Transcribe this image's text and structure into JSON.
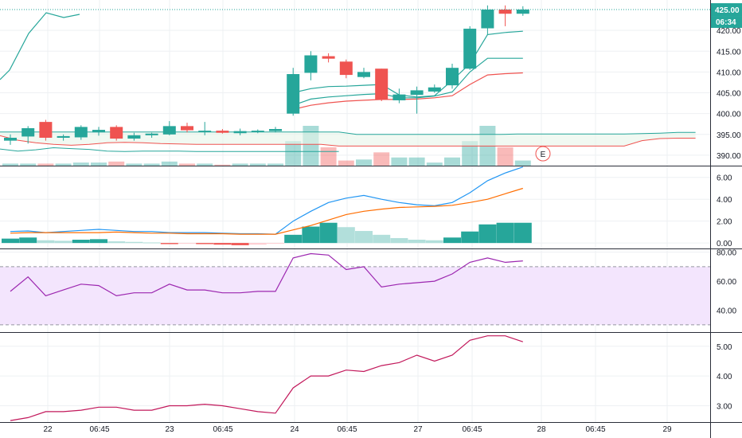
{
  "colors": {
    "up": "#26a69a",
    "down": "#ef5350",
    "price_line": "#26a69a",
    "ma_fast": "#26a69a",
    "ma_slow": "#ef5350",
    "cloud_line": "#26a69a",
    "macd_line": "#2196f3",
    "signal_line": "#ff6d00",
    "rsi_line": "#9c27b0",
    "rsi_band": "#f3e5fd",
    "atr_line": "#c2185b",
    "grid": "#eef0f3",
    "separator": "#2a2e39",
    "earnings": "#ef5350"
  },
  "chart_data": [
    {
      "type": "candlestick",
      "pane": "price",
      "y_ticks": [
        "390.00",
        "395.00",
        "400.00",
        "405.00",
        "410.00",
        "415.00",
        "420.00"
      ],
      "ylim": [
        387.5,
        427.3
      ],
      "last_price_badge": "425.00",
      "countdown_badge": "06:34",
      "earnings_marker": "E",
      "candles": [
        {
          "o": 393.5,
          "h": 395.0,
          "l": 392.5,
          "c": 394.2
        },
        {
          "o": 394.5,
          "h": 397.0,
          "l": 392.8,
          "c": 396.5
        },
        {
          "o": 398.0,
          "h": 398.5,
          "l": 393.5,
          "c": 394.2
        },
        {
          "o": 394.2,
          "h": 395.0,
          "l": 393.5,
          "c": 394.6
        },
        {
          "o": 394.3,
          "h": 397.2,
          "l": 393.7,
          "c": 396.8
        },
        {
          "o": 395.5,
          "h": 396.8,
          "l": 394.7,
          "c": 396.1
        },
        {
          "o": 396.8,
          "h": 397.2,
          "l": 393.5,
          "c": 394.0
        },
        {
          "o": 394.0,
          "h": 395.4,
          "l": 393.5,
          "c": 394.8
        },
        {
          "o": 394.8,
          "h": 395.4,
          "l": 394.2,
          "c": 395.2
        },
        {
          "o": 395.0,
          "h": 398.2,
          "l": 394.8,
          "c": 397.0
        },
        {
          "o": 397.0,
          "h": 397.8,
          "l": 395.5,
          "c": 396.0
        },
        {
          "o": 395.6,
          "h": 398.0,
          "l": 394.8,
          "c": 395.9
        },
        {
          "o": 395.9,
          "h": 396.3,
          "l": 395.2,
          "c": 395.4
        },
        {
          "o": 395.3,
          "h": 396.4,
          "l": 394.8,
          "c": 395.8
        },
        {
          "o": 395.6,
          "h": 396.2,
          "l": 395.3,
          "c": 395.9
        },
        {
          "o": 395.8,
          "h": 396.8,
          "l": 395.5,
          "c": 396.3
        },
        {
          "o": 400.0,
          "h": 411.0,
          "l": 399.5,
          "c": 409.5
        },
        {
          "o": 409.8,
          "h": 415.0,
          "l": 408.0,
          "c": 414.0
        },
        {
          "o": 413.8,
          "h": 414.5,
          "l": 412.3,
          "c": 413.2
        },
        {
          "o": 412.5,
          "h": 413.0,
          "l": 408.5,
          "c": 409.3
        },
        {
          "o": 408.8,
          "h": 411.0,
          "l": 408.5,
          "c": 410.0
        },
        {
          "o": 410.8,
          "h": 410.8,
          "l": 403.0,
          "c": 403.4
        },
        {
          "o": 403.2,
          "h": 406.0,
          "l": 402.5,
          "c": 404.6
        },
        {
          "o": 404.5,
          "h": 406.5,
          "l": 400.0,
          "c": 405.6
        },
        {
          "o": 405.3,
          "h": 407.0,
          "l": 405.0,
          "c": 406.3
        },
        {
          "o": 406.8,
          "h": 412.0,
          "l": 406.0,
          "c": 411.0
        },
        {
          "o": 410.8,
          "h": 421.0,
          "l": 410.5,
          "c": 420.4
        },
        {
          "o": 420.5,
          "h": 426.0,
          "l": 419.0,
          "c": 425.0
        },
        {
          "o": 425.0,
          "h": 426.0,
          "l": 421.0,
          "c": 424.0
        },
        {
          "o": 424.0,
          "h": 425.8,
          "l": 423.5,
          "c": 425.0
        }
      ],
      "price_line": [
        409.0,
        411.0,
        420.5,
        425.0,
        424.0,
        425.0
      ],
      "ma_fast": [
        null,
        null,
        null,
        null,
        null,
        null,
        null,
        null,
        null,
        null,
        null,
        null,
        null,
        null,
        null,
        null,
        405.0,
        406.0,
        406.5,
        406.6,
        406.8,
        407.0,
        404.5,
        404.0,
        404.3,
        408.0,
        412.0,
        419.0,
        419.5,
        419.8
      ],
      "ma_mid": [
        null,
        null,
        null,
        null,
        null,
        null,
        null,
        null,
        null,
        null,
        null,
        null,
        null,
        null,
        null,
        null,
        402.0,
        403.5,
        404.0,
        404.3,
        404.6,
        404.8,
        403.8,
        403.8,
        404.2,
        405.2,
        410.0,
        413.3,
        413.3,
        413.3
      ],
      "ma_slow": [
        null,
        null,
        null,
        null,
        null,
        null,
        null,
        null,
        null,
        null,
        null,
        null,
        null,
        null,
        null,
        null,
        401.0,
        402.0,
        402.6,
        403.0,
        403.2,
        403.4,
        403.4,
        403.5,
        403.8,
        404.3,
        407.0,
        409.3,
        409.6,
        409.8
      ],
      "cloud_upper": [
        395.6,
        395.6,
        395.6,
        395.6,
        395.6,
        395.6,
        395.6,
        395.6,
        395.6,
        395.6,
        395.6,
        395.6,
        395.6,
        395.6,
        395.6,
        395.6,
        395.6,
        395.6,
        395.6,
        395.6,
        395.0,
        395.0,
        395.0,
        395.0,
        395.0,
        395.0,
        395.0,
        395.0,
        395.0,
        395.1,
        395.1,
        395.1,
        395.1,
        395.1,
        395.1,
        395.1,
        395.2,
        395.3,
        395.5,
        395.5
      ],
      "cloud_lower": [
        394.7,
        393.6,
        393.0,
        392.6,
        392.4,
        392.6,
        393.0,
        393.1,
        393.0,
        392.8,
        392.7,
        392.6,
        392.6,
        392.6,
        392.6,
        392.6,
        392.6,
        392.6,
        392.6,
        392.2,
        392.2,
        392.2,
        392.2,
        392.2,
        392.2,
        392.2,
        392.2,
        392.2,
        392.2,
        392.2,
        392.2,
        392.2,
        392.2,
        392.2,
        392.2,
        392.2,
        393.5,
        394.0,
        394.1,
        394.1
      ],
      "cloud_low_line": [
        391.5,
        391.0,
        391.3,
        391.8,
        391.6,
        391.4,
        391.0,
        390.9,
        391.0,
        391.0,
        391.0,
        390.9,
        390.9,
        390.9,
        390.9,
        390.9,
        390.9,
        390.9,
        390.9,
        390.9
      ],
      "volume": [
        2,
        2,
        2,
        2,
        3,
        3,
        4,
        2,
        2,
        4,
        2,
        2,
        1,
        2,
        2,
        2,
        24,
        39,
        18,
        5,
        6,
        13,
        8,
        8,
        3,
        8,
        24,
        39,
        18,
        5
      ]
    },
    {
      "type": "line+bar",
      "pane": "macd",
      "y_ticks": [
        "0.00",
        "2.00",
        "4.00",
        "6.00"
      ],
      "ylim": [
        -0.5,
        7.0
      ],
      "histogram": [
        0.4,
        0.5,
        0.25,
        0.2,
        0.3,
        0.35,
        0.15,
        0.1,
        0.05,
        -0.1,
        -0.05,
        -0.1,
        -0.15,
        -0.2,
        -0.15,
        -0.05,
        0.75,
        1.5,
        1.85,
        1.45,
        1.1,
        0.75,
        0.45,
        0.3,
        0.25,
        0.5,
        1.05,
        1.7,
        1.85,
        1.85
      ],
      "macd": [
        1.05,
        1.1,
        0.95,
        1.05,
        1.15,
        1.25,
        1.15,
        1.05,
        1.05,
        0.95,
        0.95,
        0.95,
        0.9,
        0.85,
        0.85,
        0.8,
        2.0,
        2.9,
        3.7,
        4.1,
        4.35,
        4.0,
        3.7,
        3.5,
        3.4,
        3.7,
        4.6,
        5.7,
        6.4,
        6.95
      ],
      "signal": [
        0.9,
        0.95,
        0.95,
        0.95,
        0.95,
        0.95,
        1.0,
        0.95,
        0.9,
        0.9,
        0.85,
        0.85,
        0.85,
        0.8,
        0.8,
        0.8,
        1.2,
        1.6,
        2.1,
        2.6,
        2.9,
        3.1,
        3.25,
        3.3,
        3.35,
        3.45,
        3.7,
        4.0,
        4.5,
        5.0
      ]
    },
    {
      "type": "line",
      "pane": "rsi",
      "y_ticks": [
        "40.00",
        "60.00",
        "80.00"
      ],
      "ylim": [
        25,
        82
      ],
      "band": [
        30,
        70
      ],
      "values": [
        53,
        63,
        50,
        54,
        58,
        57,
        50,
        52,
        52,
        58,
        54,
        54,
        52,
        52,
        53,
        53,
        76,
        79,
        78,
        68,
        70,
        56,
        58,
        59,
        60,
        65,
        73,
        76,
        73,
        74
      ]
    },
    {
      "type": "line",
      "pane": "atr",
      "y_ticks": [
        "3.00",
        "4.00",
        "5.00"
      ],
      "ylim": [
        2.45,
        5.45
      ],
      "values": [
        2.5,
        2.6,
        2.8,
        2.8,
        2.85,
        2.95,
        2.95,
        2.85,
        2.85,
        3.0,
        3.0,
        3.05,
        3.0,
        2.9,
        2.8,
        2.75,
        3.6,
        4.0,
        4.0,
        4.2,
        4.15,
        4.35,
        4.45,
        4.7,
        4.5,
        4.7,
        5.2,
        5.35,
        5.35,
        5.15
      ]
    }
  ],
  "x_ticks": [
    "22",
    "06:45",
    "23",
    "06:45",
    "24",
    "06:45",
    "27",
    "06:45",
    "28",
    "06:45",
    "29"
  ]
}
